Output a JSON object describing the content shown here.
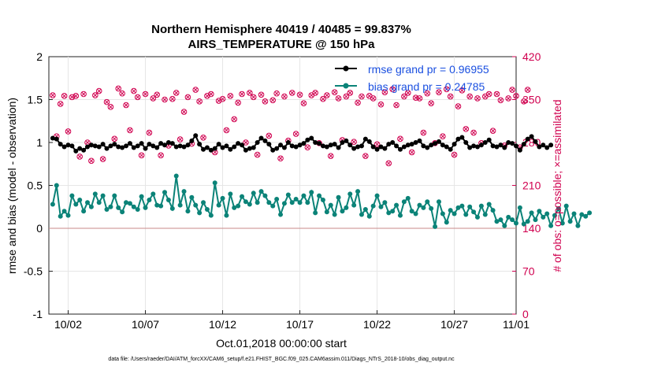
{
  "chart_data": {
    "type": "line",
    "title": "Northern Hemisphere 40419 / 40485 = 99.837%",
    "subtitle": "AIRS_TEMPERATURE @ 150 hPa",
    "xlabel": "Oct.01,2018 00:00:00 start",
    "ylabel": "rmse and bias (model - observation)",
    "ylabel_right": "# of obs: o=possible; ×=assimilated",
    "xlim": [
      0.75,
      31.0
    ],
    "ylim": [
      -1,
      2
    ],
    "ylim_right": [
      0,
      420
    ],
    "x_ticks": [
      2,
      7,
      12,
      17,
      22,
      27,
      32
    ],
    "x_tick_labels": [
      "10/02",
      "10/07",
      "10/12",
      "10/17",
      "10/22",
      "10/27",
      "11/01"
    ],
    "y_ticks": [
      -1,
      -0.5,
      0,
      0.5,
      1,
      1.5,
      2
    ],
    "y_tick_labels": [
      "-1",
      "-0.5",
      "0",
      "0.5",
      "1",
      "1.5",
      "2"
    ],
    "y_right_ticks": [
      0,
      70,
      140,
      210,
      280,
      350,
      420
    ],
    "y_right_tick_labels": [
      "0",
      "70",
      "140",
      "210",
      "280",
      "350",
      "420"
    ],
    "footer": "data file: /Users/raeder/DAI/ATM_forcXX/CAM6_setup/f.e21.FHIST_BGC.f09_025.CAM6assim.011/Diags_NTrS_2018-10/obs_diag_output.nc",
    "series": [
      {
        "name": "rmse grand pr = 0.96955",
        "color": "#000000",
        "x_start": 1.0,
        "x_step": 0.25,
        "values": [
          1.05,
          1.04,
          0.98,
          0.95,
          0.97,
          0.96,
          0.9,
          0.93,
          0.91,
          0.95,
          0.97,
          0.96,
          0.95,
          0.98,
          0.93,
          0.96,
          0.98,
          0.95,
          0.94,
          0.96,
          0.99,
          0.94,
          0.96,
          0.99,
          0.93,
          0.98,
          0.96,
          0.94,
          0.99,
          0.97,
          1.0,
          0.99,
          0.95,
          0.96,
          0.95,
          0.97,
          1.02,
          1.08,
          0.98,
          0.92,
          0.94,
          0.91,
          0.93,
          0.98,
          0.94,
          0.96,
          0.92,
          0.95,
          0.99,
          0.97,
          0.91,
          0.93,
          0.94,
          1.0,
          1.05,
          1.02,
          0.98,
          0.91,
          0.93,
          0.97,
          0.94,
          1.0,
          0.96,
          0.95,
          0.97,
          0.99,
          1.03,
          1.05,
          1.0,
          0.99,
          0.96,
          0.95,
          0.97,
          0.98,
          0.94,
          1.0,
          1.02,
          0.97,
          0.93,
          0.95,
          0.96,
          1.04,
          1.01,
          0.95,
          0.92,
          0.95,
          0.93,
          0.98,
          1.0,
          0.96,
          0.92,
          0.95,
          0.97,
          0.98,
          1.0,
          1.02,
          0.96,
          0.94,
          0.97,
          0.99,
          1.01,
          0.97,
          0.95,
          0.92,
          0.98,
          1.04,
          1.06,
          1.0,
          0.94,
          0.96,
          0.95,
          0.97,
          1.0,
          1.03,
          0.96,
          0.95,
          0.97,
          0.94,
          1.0,
          0.99,
          0.96,
          0.91,
          0.98,
          1.04,
          1.07,
          1.01,
          0.95,
          0.97,
          0.94,
          0.97
        ],
        "right_axis_values": {
          "possible": [
            357,
            290,
            343,
            356,
            298,
            354,
            356,
            257,
            359,
            280,
            250,
            357,
            364,
            253,
            346,
            338,
            286,
            368,
            360,
            341,
            300,
            364,
            354,
            259,
            359,
            296,
            352,
            358,
            259,
            350,
            275,
            351,
            361,
            285,
            330,
            354,
            278,
            366,
            347,
            288,
            356,
            359,
            264,
            348,
            351,
            300,
            356,
            318,
            345,
            359,
            280,
            361,
            354,
            260,
            358,
            347,
            291,
            349,
            360,
            254,
            355,
            283,
            361,
            294,
            358,
            344,
            272,
            357,
            361,
            279,
            351,
            357,
            258,
            362,
            352,
            284,
            355,
            361,
            281,
            345,
            355,
            258,
            356,
            352,
            277,
            342,
            362,
            246,
            367,
            341,
            286,
            355,
            361,
            264,
            353,
            352,
            296,
            360,
            344,
            279,
            362,
            290,
            367,
            355,
            260,
            339,
            365,
            302,
            355,
            296,
            352,
            279,
            355,
            359,
            299,
            359,
            349,
            275,
            352,
            366,
            356,
            272,
            347,
            366
          ],
          "assimilated": [
            357,
            290,
            343,
            356,
            298,
            354,
            356,
            257,
            359,
            280,
            250,
            357,
            364,
            253,
            346,
            338,
            286,
            368,
            360,
            341,
            300,
            364,
            354,
            259,
            359,
            296,
            352,
            358,
            259,
            350,
            275,
            351,
            361,
            285,
            330,
            354,
            278,
            366,
            347,
            288,
            356,
            359,
            264,
            348,
            351,
            300,
            356,
            318,
            345,
            359,
            280,
            361,
            354,
            260,
            358,
            347,
            291,
            349,
            360,
            254,
            355,
            283,
            361,
            294,
            358,
            344,
            272,
            357,
            361,
            279,
            351,
            357,
            258,
            362,
            352,
            284,
            355,
            361,
            281,
            345,
            355,
            258,
            356,
            352,
            277,
            342,
            362,
            246,
            367,
            341,
            286,
            355,
            361,
            264,
            353,
            352,
            296,
            360,
            344,
            279,
            362,
            290,
            367,
            355,
            260,
            339,
            365,
            302,
            355,
            296,
            352,
            279,
            355,
            359,
            299,
            359,
            349,
            275,
            352,
            366,
            356,
            272,
            347,
            366
          ]
        }
      },
      {
        "name": "bias grand pr = 0.24785",
        "color": "#0b8378",
        "x_start": 1.0,
        "x_step": 0.25,
        "values": [
          0.28,
          0.5,
          0.14,
          0.2,
          0.15,
          0.38,
          0.28,
          0.33,
          0.2,
          0.3,
          0.25,
          0.4,
          0.3,
          0.38,
          0.22,
          0.25,
          0.38,
          0.24,
          0.19,
          0.3,
          0.29,
          0.25,
          0.22,
          0.37,
          0.24,
          0.33,
          0.4,
          0.27,
          0.26,
          0.42,
          0.33,
          0.23,
          0.61,
          0.27,
          0.43,
          0.2,
          0.36,
          0.27,
          0.18,
          0.3,
          0.22,
          0.15,
          0.53,
          0.27,
          0.35,
          0.15,
          0.4,
          0.24,
          0.26,
          0.37,
          0.31,
          0.28,
          0.41,
          0.3,
          0.43,
          0.38,
          0.3,
          0.26,
          0.34,
          0.16,
          0.29,
          0.39,
          0.3,
          0.34,
          0.3,
          0.38,
          0.3,
          0.42,
          0.18,
          0.38,
          0.33,
          0.19,
          0.27,
          0.16,
          0.36,
          0.2,
          0.24,
          0.4,
          0.27,
          0.43,
          0.16,
          0.22,
          0.14,
          0.26,
          0.38,
          0.25,
          0.3,
          0.18,
          0.2,
          0.27,
          0.15,
          0.31,
          0.35,
          0.2,
          0.17,
          0.27,
          0.24,
          0.31,
          0.23,
          0.02,
          0.31,
          0.17,
          0.07,
          0.21,
          0.17,
          0.24,
          0.26,
          0.16,
          0.25,
          0.19,
          0.13,
          0.26,
          0.16,
          0.28,
          0.21,
          0.08,
          0.1,
          0.03,
          0.13,
          0.1,
          0.06,
          0.24,
          0.05,
          0.08,
          0.18,
          0.1,
          0.2,
          0.13,
          0.17,
          0.03,
          0.15,
          0.23,
          0.06,
          0.26,
          0.08,
          0.17,
          0.03,
          0.16,
          0.14,
          0.18
        ]
      }
    ],
    "legend": [
      {
        "label": "rmse grand pr = 0.96955",
        "color": "#000000"
      },
      {
        "label": "bias grand pr = 0.24785",
        "color": "#0b8378"
      }
    ],
    "reference_line_y": 0
  }
}
